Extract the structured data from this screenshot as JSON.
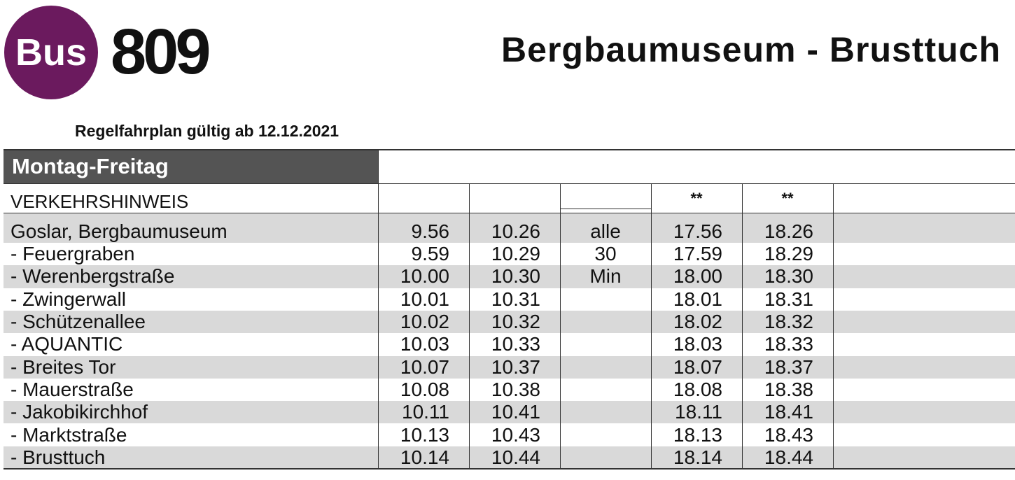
{
  "header": {
    "badge": "Bus",
    "line": "809",
    "title": "Bergbaumuseum - Brusttuch",
    "validity": "Regelfahrplan gültig ab 12.12.2021"
  },
  "table": {
    "day_type": "Montag-Freitag",
    "note_label": "VERKEHRSHINWEIS",
    "notes": [
      "**",
      "**"
    ],
    "interval_note": [
      "alle",
      "30",
      "Min"
    ],
    "rows": [
      {
        "stop": "Goslar, Bergbaumuseum",
        "times": [
          "9.56",
          "10.26",
          "17.56",
          "18.26"
        ]
      },
      {
        "stop": "- Feuergraben",
        "times": [
          "9.59",
          "10.29",
          "17.59",
          "18.29"
        ]
      },
      {
        "stop": "- Werenbergstraße",
        "times": [
          "10.00",
          "10.30",
          "18.00",
          "18.30"
        ]
      },
      {
        "stop": "- Zwingerwall",
        "times": [
          "10.01",
          "10.31",
          "18.01",
          "18.31"
        ]
      },
      {
        "stop": "- Schützenallee",
        "times": [
          "10.02",
          "10.32",
          "18.02",
          "18.32"
        ]
      },
      {
        "stop": "- AQUANTIC",
        "times": [
          "10.03",
          "10.33",
          "18.03",
          "18.33"
        ]
      },
      {
        "stop": "- Breites Tor",
        "times": [
          "10.07",
          "10.37",
          "18.07",
          "18.37"
        ]
      },
      {
        "stop": "- Mauerstraße",
        "times": [
          "10.08",
          "10.38",
          "18.08",
          "18.38"
        ]
      },
      {
        "stop": "- Jakobikirchhof",
        "times": [
          "10.11",
          "10.41",
          "18.11",
          "18.41"
        ]
      },
      {
        "stop": "- Marktstraße",
        "times": [
          "10.13",
          "10.43",
          "18.13",
          "18.43"
        ]
      },
      {
        "stop": "- Brusttuch",
        "times": [
          "10.14",
          "10.44",
          "18.14",
          "18.44"
        ]
      }
    ]
  }
}
